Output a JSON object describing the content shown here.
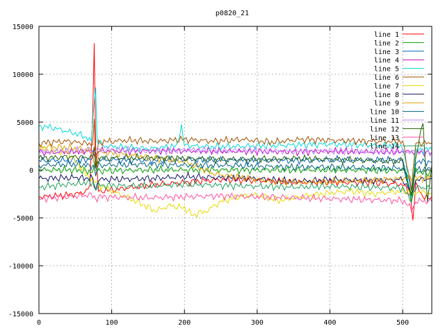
{
  "chart_data": {
    "type": "line",
    "title": "p0820_21",
    "xlabel": "",
    "ylabel": "",
    "xlim": [
      0,
      540
    ],
    "ylim": [
      -15000,
      15000
    ],
    "x_ticks": [
      0,
      100,
      200,
      300,
      400,
      500
    ],
    "y_ticks": [
      -15000,
      -10000,
      -5000,
      0,
      5000,
      10000,
      15000
    ],
    "grid": true,
    "legend_position": "top-right",
    "series": [
      {
        "name": "line 1",
        "color": "#ff0000",
        "points": [
          [
            0,
            -2800
          ],
          [
            30,
            -2700
          ],
          [
            60,
            -2400
          ],
          [
            70,
            -1800
          ],
          [
            74,
            6000
          ],
          [
            76,
            13200
          ],
          [
            78,
            2000
          ],
          [
            82,
            -2200
          ],
          [
            100,
            -2100
          ],
          [
            150,
            -1600
          ],
          [
            200,
            -1300
          ],
          [
            250,
            -1000
          ],
          [
            300,
            -1100
          ],
          [
            350,
            -1300
          ],
          [
            400,
            -1300
          ],
          [
            450,
            -1300
          ],
          [
            500,
            -1500
          ],
          [
            510,
            -2500
          ],
          [
            514,
            -5200
          ],
          [
            518,
            -1500
          ],
          [
            530,
            -3000
          ],
          [
            540,
            -2800
          ]
        ]
      },
      {
        "name": "line 2",
        "color": "#00a000",
        "points": [
          [
            0,
            0
          ],
          [
            50,
            0
          ],
          [
            74,
            -200
          ],
          [
            76,
            600
          ],
          [
            80,
            -100
          ],
          [
            150,
            0
          ],
          [
            250,
            0
          ],
          [
            350,
            0
          ],
          [
            450,
            0
          ],
          [
            505,
            -100
          ],
          [
            512,
            -3500
          ],
          [
            518,
            0
          ],
          [
            530,
            -400
          ],
          [
            540,
            -200
          ]
        ]
      },
      {
        "name": "line 3",
        "color": "#0060c0",
        "points": [
          [
            0,
            1000
          ],
          [
            50,
            1000
          ],
          [
            74,
            1100
          ],
          [
            78,
            400
          ],
          [
            82,
            1100
          ],
          [
            150,
            1000
          ],
          [
            200,
            1100
          ],
          [
            250,
            1050
          ],
          [
            300,
            1000
          ],
          [
            350,
            1000
          ],
          [
            400,
            1050
          ],
          [
            450,
            1050
          ],
          [
            500,
            1000
          ],
          [
            512,
            -2000
          ],
          [
            518,
            900
          ],
          [
            540,
            800
          ]
        ]
      },
      {
        "name": "line 4",
        "color": "#c000c0",
        "points": [
          [
            0,
            1800
          ],
          [
            50,
            1900
          ],
          [
            74,
            2000
          ],
          [
            78,
            1400
          ],
          [
            82,
            2000
          ],
          [
            150,
            2000
          ],
          [
            200,
            2000
          ],
          [
            250,
            1950
          ],
          [
            300,
            1950
          ],
          [
            350,
            1900
          ],
          [
            400,
            1950
          ],
          [
            450,
            1900
          ],
          [
            500,
            1900
          ],
          [
            540,
            1800
          ]
        ]
      },
      {
        "name": "line 5",
        "color": "#00d8d8",
        "points": [
          [
            0,
            4600
          ],
          [
            20,
            4400
          ],
          [
            40,
            4000
          ],
          [
            60,
            3600
          ],
          [
            72,
            3000
          ],
          [
            75,
            6500
          ],
          [
            78,
            8500
          ],
          [
            80,
            3000
          ],
          [
            90,
            2500
          ],
          [
            150,
            2200
          ],
          [
            190,
            2500
          ],
          [
            196,
            4500
          ],
          [
            200,
            2600
          ],
          [
            230,
            2400
          ],
          [
            300,
            2500
          ],
          [
            350,
            2600
          ],
          [
            400,
            2700
          ],
          [
            450,
            2600
          ],
          [
            500,
            2500
          ],
          [
            512,
            -3000
          ],
          [
            518,
            2000
          ],
          [
            540,
            2200
          ]
        ]
      },
      {
        "name": "line 6",
        "color": "#a05000",
        "points": [
          [
            0,
            2800
          ],
          [
            40,
            3000
          ],
          [
            74,
            2700
          ],
          [
            76,
            5000
          ],
          [
            78,
            600
          ],
          [
            82,
            2900
          ],
          [
            120,
            3100
          ],
          [
            160,
            3000
          ],
          [
            200,
            3200
          ],
          [
            240,
            3000
          ],
          [
            280,
            3200
          ],
          [
            320,
            2900
          ],
          [
            360,
            3200
          ],
          [
            400,
            3100
          ],
          [
            450,
            3000
          ],
          [
            500,
            3000
          ],
          [
            512,
            -2000
          ],
          [
            518,
            2800
          ],
          [
            540,
            2800
          ]
        ]
      },
      {
        "name": "line 7",
        "color": "#e8d800",
        "points": [
          [
            0,
            2200
          ],
          [
            40,
            1800
          ],
          [
            74,
            -1200
          ],
          [
            80,
            -1500
          ],
          [
            110,
            -2500
          ],
          [
            140,
            -3500
          ],
          [
            160,
            -4300
          ],
          [
            180,
            -3700
          ],
          [
            200,
            -4000
          ],
          [
            212,
            -4700
          ],
          [
            230,
            -4300
          ],
          [
            250,
            -3300
          ],
          [
            280,
            -2700
          ],
          [
            300,
            -2600
          ],
          [
            330,
            -3200
          ],
          [
            360,
            -2800
          ],
          [
            400,
            -2400
          ],
          [
            430,
            -2200
          ],
          [
            460,
            -2500
          ],
          [
            500,
            -2200
          ],
          [
            540,
            -2400
          ]
        ]
      },
      {
        "name": "line 8",
        "color": "#101060",
        "points": [
          [
            0,
            -900
          ],
          [
            50,
            -800
          ],
          [
            74,
            -900
          ],
          [
            78,
            -2200
          ],
          [
            82,
            -1000
          ],
          [
            150,
            -900
          ],
          [
            200,
            -700
          ],
          [
            250,
            -800
          ],
          [
            300,
            -900
          ],
          [
            350,
            -1200
          ],
          [
            400,
            -1000
          ],
          [
            450,
            -1100
          ],
          [
            500,
            -1000
          ],
          [
            512,
            -2500
          ],
          [
            518,
            -1000
          ],
          [
            540,
            -900
          ]
        ]
      },
      {
        "name": "line 9",
        "color": "#e0a000",
        "points": [
          [
            0,
            2500
          ],
          [
            40,
            2300
          ],
          [
            74,
            2000
          ],
          [
            78,
            -1000
          ],
          [
            82,
            1900
          ],
          [
            120,
            1600
          ],
          [
            160,
            1200
          ],
          [
            200,
            900
          ],
          [
            240,
            -400
          ],
          [
            280,
            -800
          ],
          [
            320,
            -1200
          ],
          [
            360,
            -1300
          ],
          [
            400,
            -1200
          ],
          [
            450,
            -1100
          ],
          [
            500,
            -900
          ],
          [
            540,
            -800
          ]
        ]
      },
      {
        "name": "line 10",
        "color": "#006080",
        "points": [
          [
            0,
            500
          ],
          [
            50,
            600
          ],
          [
            74,
            400
          ],
          [
            78,
            -300
          ],
          [
            82,
            500
          ],
          [
            150,
            600
          ],
          [
            200,
            500
          ],
          [
            250,
            500
          ],
          [
            300,
            400
          ],
          [
            350,
            300
          ],
          [
            400,
            300
          ],
          [
            450,
            200
          ],
          [
            500,
            200
          ],
          [
            512,
            -2500
          ],
          [
            518,
            0
          ],
          [
            540,
            100
          ]
        ]
      },
      {
        "name": "line 11",
        "color": "#c080ff",
        "points": [
          [
            0,
            1900
          ],
          [
            50,
            2000
          ],
          [
            100,
            2100
          ],
          [
            150,
            2000
          ],
          [
            200,
            2100
          ],
          [
            250,
            2000
          ],
          [
            300,
            2000
          ],
          [
            350,
            1950
          ],
          [
            400,
            2000
          ],
          [
            450,
            1900
          ],
          [
            500,
            1900
          ],
          [
            540,
            1900
          ]
        ]
      },
      {
        "name": "line 12",
        "color": "#206000",
        "points": [
          [
            0,
            1200
          ],
          [
            40,
            1400
          ],
          [
            74,
            1300
          ],
          [
            76,
            2800
          ],
          [
            78,
            0
          ],
          [
            82,
            1200
          ],
          [
            150,
            1300
          ],
          [
            200,
            1200
          ],
          [
            250,
            1100
          ],
          [
            300,
            1100
          ],
          [
            350,
            1200
          ],
          [
            400,
            1100
          ],
          [
            450,
            1000
          ],
          [
            500,
            900
          ],
          [
            512,
            -3000
          ],
          [
            518,
            1000
          ],
          [
            522,
            3000
          ],
          [
            528,
            4900
          ],
          [
            534,
            -3500
          ],
          [
            540,
            500
          ]
        ]
      },
      {
        "name": "line 13",
        "color": "#ff50a0",
        "points": [
          [
            0,
            -3000
          ],
          [
            40,
            -2800
          ],
          [
            74,
            -2600
          ],
          [
            78,
            -3200
          ],
          [
            82,
            -2800
          ],
          [
            150,
            -2900
          ],
          [
            200,
            -2800
          ],
          [
            250,
            -2700
          ],
          [
            300,
            -2800
          ],
          [
            350,
            -2900
          ],
          [
            400,
            -3000
          ],
          [
            450,
            -3100
          ],
          [
            500,
            -3200
          ],
          [
            512,
            -4000
          ],
          [
            518,
            -3200
          ],
          [
            540,
            -3300
          ]
        ]
      },
      {
        "name": "line 14",
        "color": "#20a060",
        "points": [
          [
            0,
            -1800
          ],
          [
            40,
            -1500
          ],
          [
            74,
            -1300
          ],
          [
            78,
            -2000
          ],
          [
            82,
            -1600
          ],
          [
            150,
            -1700
          ],
          [
            200,
            -1500
          ],
          [
            250,
            -1600
          ],
          [
            300,
            -1700
          ],
          [
            350,
            -1800
          ],
          [
            400,
            -1700
          ],
          [
            450,
            -1800
          ],
          [
            500,
            -1900
          ],
          [
            512,
            -3200
          ],
          [
            518,
            -1800
          ],
          [
            540,
            -1900
          ]
        ]
      }
    ]
  }
}
